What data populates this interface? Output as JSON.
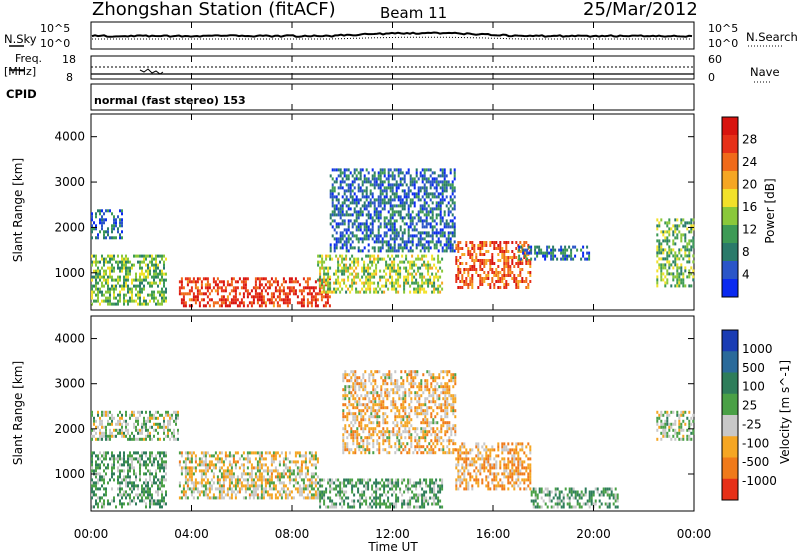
{
  "header": {
    "station": "Zhongshan Station (fitACF)",
    "beam": "Beam 11",
    "date": "25/Mar/2012"
  },
  "top_panels": {
    "nsky_label": "N.Sky",
    "nsky_ticks": [
      "10^5",
      "10^0"
    ],
    "nsearch_label": "N.Search",
    "nsearch_ticks": [
      "10^5",
      "10^0"
    ],
    "freq_label_line1": "Freq.",
    "freq_label_line2": "[MHz]",
    "freq_ticks": [
      "18",
      "8"
    ],
    "nave_label": "Nave",
    "nave_ticks": [
      "60",
      "0"
    ],
    "cpid_label": "CPID",
    "cpid_text": "normal (fast stereo) 153"
  },
  "chart_data": [
    {
      "type": "heatmap",
      "title": "",
      "xlabel": "Time UT",
      "ylabel": "Slant Range [km]",
      "x_ticks": [
        "00:00",
        "04:00",
        "08:00",
        "12:00",
        "16:00",
        "20:00",
        "00:00"
      ],
      "xlim": [
        0,
        24
      ],
      "y_ticks": [
        "1000",
        "2000",
        "3000",
        "4000"
      ],
      "ylim": [
        180,
        4500
      ],
      "colorbar": {
        "label": "Power [dB]",
        "tick_labels": [
          "4",
          "8",
          "12",
          "16",
          "20",
          "24",
          "28"
        ],
        "range": [
          0,
          30
        ],
        "colors": [
          "#0a2af0",
          "#2a55c8",
          "#2a7a6a",
          "#3d9a55",
          "#8ac83a",
          "#f2e12a",
          "#f5a623",
          "#f06a1a",
          "#e63018",
          "#d8140f"
        ]
      },
      "regions": [
        {
          "t0": 0.0,
          "t1": 3.0,
          "r0": 300,
          "r1": 1400,
          "value": 12
        },
        {
          "t0": 0.0,
          "t1": 1.2,
          "r0": 1800,
          "r1": 2400,
          "value": 6
        },
        {
          "t0": 3.5,
          "t1": 9.5,
          "r0": 250,
          "r1": 900,
          "value": 26
        },
        {
          "t0": 9.0,
          "t1": 14.0,
          "r0": 600,
          "r1": 1400,
          "value": 14
        },
        {
          "t0": 9.5,
          "t1": 14.5,
          "r0": 1500,
          "r1": 3300,
          "value": 6
        },
        {
          "t0": 14.5,
          "t1": 17.5,
          "r0": 700,
          "r1": 1700,
          "value": 24
        },
        {
          "t0": 17.0,
          "t1": 19.8,
          "r0": 1300,
          "r1": 1600,
          "value": 6
        },
        {
          "t0": 22.5,
          "t1": 24.0,
          "r0": 700,
          "r1": 2200,
          "value": 12
        }
      ]
    },
    {
      "type": "heatmap",
      "title": "",
      "xlabel": "Time UT",
      "ylabel": "Slant Range [km]",
      "x_ticks": [
        "00:00",
        "04:00",
        "08:00",
        "12:00",
        "16:00",
        "20:00",
        "00:00"
      ],
      "xlim": [
        0,
        24
      ],
      "y_ticks": [
        "1000",
        "2000",
        "3000",
        "4000"
      ],
      "ylim": [
        180,
        4500
      ],
      "colorbar": {
        "label": "Velocity [m s^-1]",
        "tick_labels": [
          "1000",
          "500",
          "100",
          "25",
          "-25",
          "-100",
          "-500",
          "-1000"
        ],
        "range": [
          -1000,
          1000
        ],
        "colors": [
          "#1a3cb4",
          "#2a6a9a",
          "#2e7d5a",
          "#4aa046",
          "#c8c8c8",
          "#f5a623",
          "#f07a1a",
          "#e63018"
        ]
      },
      "regions": [
        {
          "t0": 0.0,
          "t1": 3.5,
          "r0": 1800,
          "r1": 2400,
          "value": 0
        },
        {
          "t0": 0.0,
          "t1": 3.0,
          "r0": 300,
          "r1": 1500,
          "value": 150
        },
        {
          "t0": 3.5,
          "t1": 9.0,
          "r0": 500,
          "r1": 1500,
          "value": -200
        },
        {
          "t0": 9.0,
          "t1": 14.0,
          "r0": 300,
          "r1": 900,
          "value": 150
        },
        {
          "t0": 10.0,
          "t1": 14.5,
          "r0": 1500,
          "r1": 3300,
          "value": -300
        },
        {
          "t0": 14.5,
          "t1": 17.5,
          "r0": 700,
          "r1": 1700,
          "value": -400
        },
        {
          "t0": 17.5,
          "t1": 21.0,
          "r0": 300,
          "r1": 700,
          "value": 150
        },
        {
          "t0": 22.5,
          "t1": 24.0,
          "r0": 1800,
          "r1": 2400,
          "value": 0
        }
      ]
    }
  ]
}
